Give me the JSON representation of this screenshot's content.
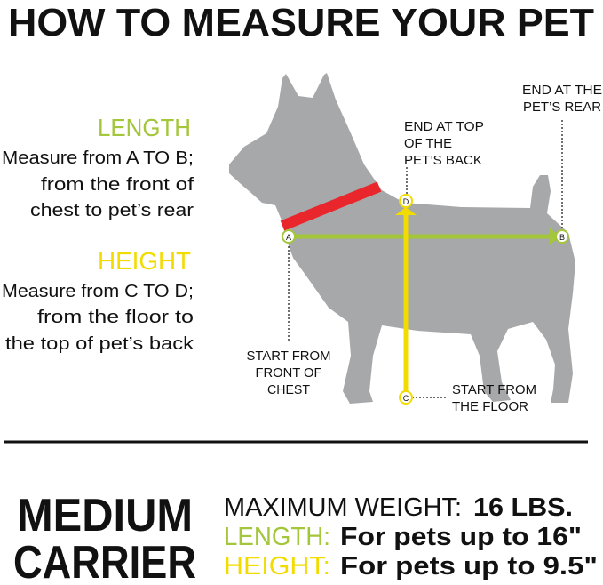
{
  "title": "HOW TO MEASURE YOUR PET",
  "length": {
    "heading": "LENGTH",
    "lines": [
      "Measure from A TO B;",
      "from the front of",
      "chest to pet’s rear"
    ]
  },
  "height": {
    "heading": "HEIGHT",
    "lines": [
      "Measure from C TO D;",
      "from the floor to",
      "the top of pet’s back"
    ]
  },
  "diagram": {
    "points": {
      "a": "A",
      "b": "B",
      "c": "C",
      "d": "D"
    },
    "label_rear": [
      "END AT THE",
      "PET’S REAR"
    ],
    "label_back": [
      "END AT TOP",
      "OF THE",
      "PET’S BACK"
    ],
    "label_chest": [
      "START FROM",
      "FRONT OF",
      "CHEST"
    ],
    "label_floor": [
      "START FROM",
      "THE FLOOR"
    ]
  },
  "product": {
    "name_lines": [
      "MEDIUM",
      "CARRIER"
    ],
    "weight_label": "MAXIMUM WEIGHT:",
    "weight_value": "16 LBS.",
    "length_label": "LENGTH:",
    "length_value": "For pets up to 16\"",
    "height_label": "HEIGHT:",
    "height_value": "For pets up to 9.5\""
  },
  "colors": {
    "length": "#a4c63a",
    "height": "#f2dc00",
    "collar": "#e8262b",
    "dog": "#a7a8aa",
    "text": "#111111"
  }
}
